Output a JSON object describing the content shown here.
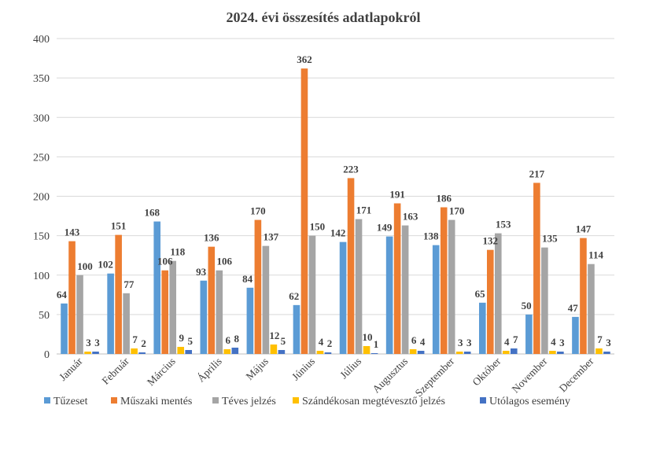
{
  "chart_data": {
    "type": "bar",
    "title": "2024. évi összesítés adatlapokról",
    "xlabel": "",
    "ylabel": "",
    "ylim": [
      0,
      400
    ],
    "yticks": [
      0,
      50,
      100,
      150,
      200,
      250,
      300,
      350,
      400
    ],
    "grid": true,
    "legend_position": "bottom",
    "categories": [
      "Január",
      "Február",
      "Március",
      "Április",
      "Május",
      "Június",
      "Július",
      "Augusztus",
      "Szeptember",
      "Október",
      "November",
      "December"
    ],
    "series": [
      {
        "name": "Tűzeset",
        "color": "#5b9bd5",
        "values": [
          64,
          102,
          168,
          93,
          84,
          62,
          142,
          149,
          138,
          65,
          50,
          47
        ]
      },
      {
        "name": "Műszaki mentés",
        "color": "#ed7d31",
        "values": [
          143,
          151,
          106,
          136,
          170,
          362,
          223,
          191,
          186,
          132,
          217,
          147
        ]
      },
      {
        "name": "Téves jelzés",
        "color": "#a5a5a5",
        "values": [
          100,
          77,
          118,
          106,
          137,
          150,
          171,
          163,
          170,
          153,
          135,
          114
        ]
      },
      {
        "name": "Szándékosan megtévesztő jelzés",
        "color": "#ffc000",
        "values": [
          3,
          7,
          9,
          6,
          12,
          4,
          10,
          6,
          3,
          4,
          4,
          7
        ]
      },
      {
        "name": "Utólagos esemény",
        "color": "#4472c4",
        "values": [
          3,
          2,
          5,
          8,
          5,
          2,
          1,
          4,
          3,
          7,
          3,
          3
        ]
      }
    ]
  }
}
